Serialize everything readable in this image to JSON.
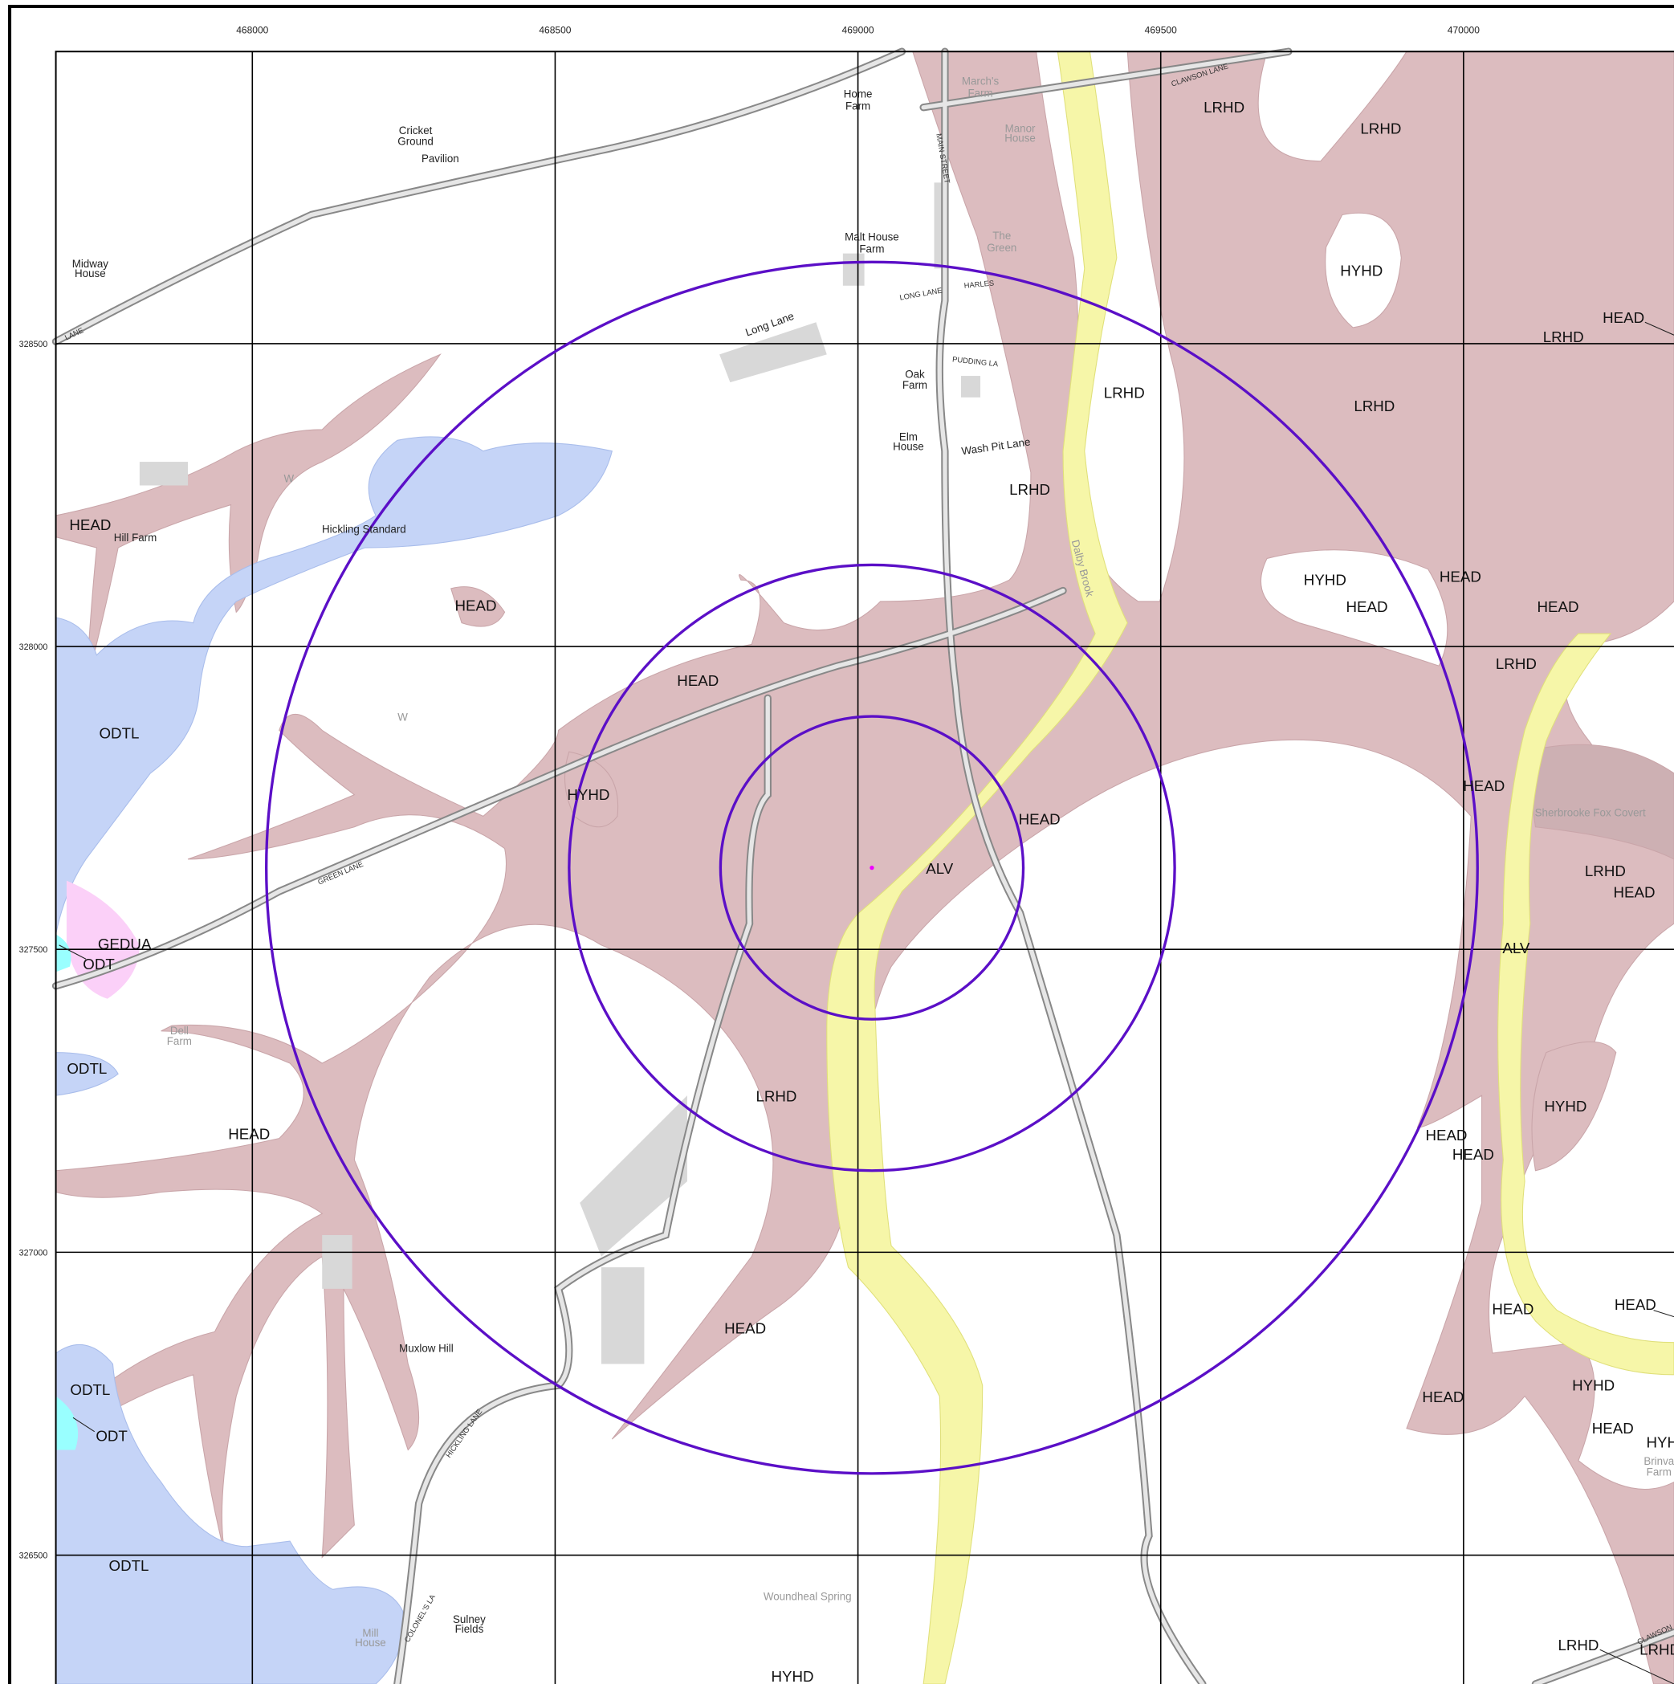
{
  "grid": {
    "eastings": [
      468000,
      468500,
      469000,
      469500,
      470000
    ],
    "northings": [
      328500,
      328000,
      327500,
      327000,
      326500
    ]
  },
  "geology_labels": [
    "LRHD",
    "LRHD",
    "HYHD",
    "HEAD",
    "LRHD",
    "LRHD",
    "LRHD",
    "LRHD",
    "HEAD",
    "HYHD",
    "HEAD",
    "HEAD",
    "HEAD",
    "HEAD",
    "LRHD",
    "HEAD",
    "ODTL",
    "HYHD",
    "HEAD",
    "HEAD",
    "ALV",
    "LRHD",
    "HEAD",
    "GEDUA",
    "ODT",
    "ALV",
    "ODTL",
    "LRHD",
    "HYHD",
    "HEAD",
    "HEAD",
    "HEAD",
    "HEAD",
    "HEAD",
    "HEAD",
    "HYHD",
    "ODTL",
    "HEAD",
    "HEAD",
    "ODT",
    "HYH",
    "ODTL",
    "LRHD",
    "LRHD",
    "HYHD"
  ],
  "place_labels": [
    [
      "Home",
      "Farm"
    ],
    [
      "Cricket",
      "Ground"
    ],
    [
      "Pavilion"
    ],
    [
      "March's",
      "Farm"
    ],
    [
      "Manor",
      "House"
    ],
    [
      "Midway",
      "House"
    ],
    [
      "Malt House",
      "Farm"
    ],
    [
      "The",
      "Green"
    ],
    [
      "Long Lane"
    ],
    [
      "Oak",
      "Farm"
    ],
    [
      "Elm",
      "House"
    ],
    [
      "Wash Pit Lane"
    ],
    [
      "Hill Farm"
    ],
    [
      "Hickling Standard"
    ],
    [
      "Dalby Brook"
    ],
    [
      "Sherbrooke Fox Covert"
    ],
    [
      "Dell",
      "Farm"
    ],
    [
      "Muxlow Hill"
    ],
    [
      "Woundheal Spring"
    ],
    [
      "Mill",
      "House"
    ],
    [
      "Sulney",
      "Fields"
    ],
    [
      "Brinva",
      "Farm"
    ],
    [
      "W"
    ],
    [
      "W"
    ]
  ],
  "road_labels": [
    "GREEN LANE",
    "CLAWSON LANE",
    "MAIN STREET",
    "LONG LANE",
    "HARLES",
    "PUDDING LA",
    "HICKLING LANE",
    "COLONEL'S LA",
    "LANE",
    "CLAWSON"
  ]
}
